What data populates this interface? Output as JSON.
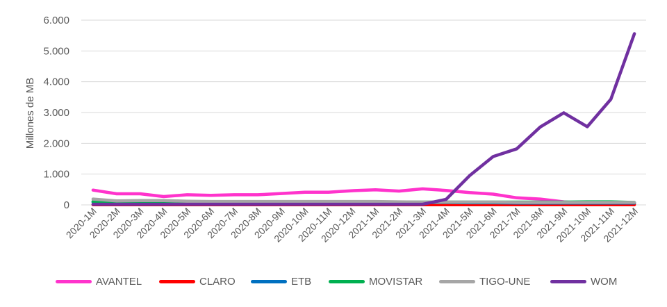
{
  "chart_data": {
    "type": "line",
    "ylabel": "Millones de MB",
    "xlabel": "",
    "ylim": [
      0,
      6000
    ],
    "yticks": [
      0,
      1000,
      2000,
      3000,
      4000,
      5000,
      6000
    ],
    "ytick_labels": [
      "0",
      "1.000",
      "2.000",
      "3.000",
      "4.000",
      "5.000",
      "6.000"
    ],
    "grid": "horizontal",
    "legend_position": "bottom",
    "categories": [
      "2020-1M",
      "2020-2M",
      "2020-3M",
      "2020-4M",
      "2020-5M",
      "2020-6M",
      "2020-7M",
      "2020-8M",
      "2020-9M",
      "2020-10M",
      "2020-11M",
      "2020-12M",
      "2021-1M",
      "2021-2M",
      "2021-3M",
      "2021-4M",
      "2021-5M",
      "2021-6M",
      "2021-7M",
      "2021-8M",
      "2021-9M",
      "2021-10M",
      "2021-11M",
      "2021-12M"
    ],
    "series": [
      {
        "name": "AVANTEL",
        "color": "#ff33cc",
        "values": [
          480,
          360,
          360,
          270,
          330,
          310,
          330,
          330,
          370,
          410,
          410,
          460,
          490,
          450,
          520,
          470,
          400,
          350,
          230,
          190,
          100,
          40,
          30,
          40
        ]
      },
      {
        "name": "CLARO",
        "color": "#ff0000",
        "values": [
          5,
          5,
          5,
          5,
          5,
          5,
          5,
          5,
          5,
          5,
          5,
          5,
          5,
          5,
          5,
          5,
          5,
          5,
          5,
          5,
          5,
          5,
          5,
          5
        ]
      },
      {
        "name": "ETB",
        "color": "#0070c0",
        "values": [
          90,
          70,
          70,
          60,
          60,
          60,
          70,
          70,
          70,
          80,
          80,
          80,
          80,
          80,
          80,
          80,
          70,
          70,
          60,
          60,
          60,
          60,
          60,
          60
        ]
      },
      {
        "name": "MOVISTAR",
        "color": "#00b050",
        "values": [
          110,
          100,
          100,
          90,
          90,
          90,
          90,
          90,
          90,
          90,
          90,
          90,
          90,
          90,
          90,
          90,
          90,
          90,
          90,
          90,
          90,
          100,
          100,
          80
        ]
      },
      {
        "name": "TIGO-UNE",
        "color": "#a6a6a6",
        "values": [
          190,
          130,
          140,
          140,
          120,
          110,
          110,
          110,
          110,
          110,
          110,
          110,
          110,
          100,
          90,
          90,
          90,
          90,
          80,
          80,
          80,
          80,
          80,
          80
        ]
      },
      {
        "name": "WOM",
        "color": "#7030a0",
        "values": [
          20,
          20,
          20,
          20,
          20,
          20,
          20,
          20,
          20,
          20,
          20,
          20,
          20,
          20,
          20,
          180,
          950,
          1570,
          1820,
          2530,
          2990,
          2540,
          3430,
          5560
        ]
      }
    ]
  }
}
